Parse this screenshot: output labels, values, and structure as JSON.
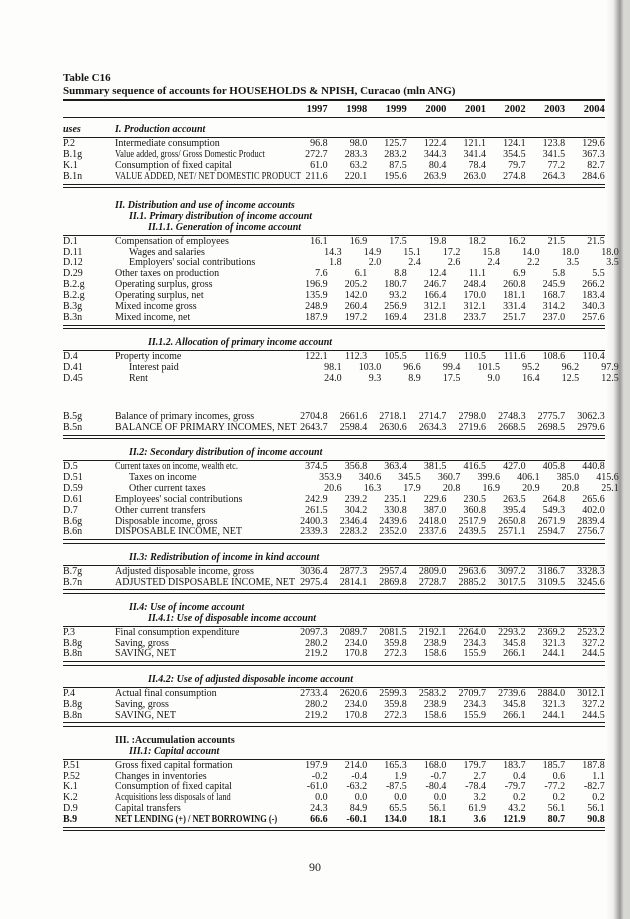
{
  "page": {
    "number": "90"
  },
  "table": {
    "label": "Table C16",
    "title": "Summary sequence of accounts for HOUSEHOLDS & NPISH, Curacao  (mln ANG)",
    "years": [
      "1997",
      "1998",
      "1999",
      "2000",
      "2001",
      "2002",
      "2003",
      "2004"
    ],
    "blocks": [
      {
        "headings": [
          {
            "code": "uses",
            "text": "I. Production account",
            "level": 1
          }
        ],
        "rows": [
          {
            "code": "P.2",
            "label": "Intermediate consumption",
            "values": [
              "96.8",
              "98.0",
              "125.7",
              "122.4",
              "121.1",
              "124.1",
              "123.8",
              "129.6"
            ]
          },
          {
            "code": "B.1g",
            "label": "Value added, gross/ Gross Domestic Product",
            "values": [
              "272.7",
              "283.3",
              "283.2",
              "344.3",
              "341.4",
              "354.5",
              "341.5",
              "367.3"
            ]
          },
          {
            "code": "K.1",
            "label": "Consumption of fixed capital",
            "values": [
              "61.0",
              "63.2",
              "87.5",
              "80.4",
              "78.4",
              "79.7",
              "77.2",
              "82.7"
            ]
          },
          {
            "code": "B.1n",
            "label": "VALUE ADDED, NET/ NET DOMESTIC PRODUCT",
            "values": [
              "211.6",
              "220.1",
              "195.6",
              "263.9",
              "263.0",
              "274.8",
              "264.3",
              "284.6"
            ]
          }
        ],
        "end_rule": "double"
      },
      {
        "gap": "large",
        "headings": [
          {
            "text": "II. Distribution and use of income accounts",
            "level": 1
          },
          {
            "text": "II.1. Primary distribution of income account",
            "level": 2
          },
          {
            "text": "II.1.1. Generation of income account",
            "level": 3
          }
        ],
        "rows": [
          {
            "code": "D.1",
            "label": "Compensation of employees",
            "values": [
              "16.1",
              "16.9",
              "17.5",
              "19.8",
              "18.2",
              "16.2",
              "21.5",
              "21.5"
            ]
          },
          {
            "code": "D.11",
            "label": "Wages and salaries",
            "indent": true,
            "values": [
              "14.3",
              "14.9",
              "15.1",
              "17.2",
              "15.8",
              "14.0",
              "18.0",
              "18.0"
            ]
          },
          {
            "code": "D.12",
            "label": "Employers' social contributions",
            "indent": true,
            "values": [
              "1.8",
              "2.0",
              "2.4",
              "2.6",
              "2.4",
              "2.2",
              "3.5",
              "3.5"
            ]
          },
          {
            "code": "D.29",
            "label": "Other taxes on production",
            "values": [
              "7.6",
              "6.1",
              "8.8",
              "12.4",
              "11.1",
              "6.9",
              "5.8",
              "5.5"
            ]
          },
          {
            "code": "B.2.g",
            "label": "Operating surplus, gross",
            "values": [
              "196.9",
              "205.2",
              "180.7",
              "246.7",
              "248.4",
              "260.8",
              "245.9",
              "266.2"
            ]
          },
          {
            "code": "B.2.g",
            "label": "Operating surplus, net",
            "values": [
              "135.9",
              "142.0",
              "93.2",
              "166.4",
              "170.0",
              "181.1",
              "168.7",
              "183.4"
            ]
          },
          {
            "code": "B.3g",
            "label": "Mixed income gross",
            "values": [
              "248.9",
              "260.4",
              "256.9",
              "312.1",
              "312.1",
              "331.4",
              "314.2",
              "340.3"
            ]
          },
          {
            "code": "B.3n",
            "label": "Mixed income, net",
            "values": [
              "187.9",
              "197.2",
              "169.4",
              "231.8",
              "233.7",
              "251.7",
              "237.0",
              "257.6"
            ]
          }
        ],
        "end_rule": "double"
      },
      {
        "headings": [
          {
            "text": "II.1.2. Allocation of primary income account",
            "level": 3
          }
        ],
        "rows": [
          {
            "code": "D.4",
            "label": "Property income",
            "values": [
              "122.1",
              "112.3",
              "105.5",
              "116.9",
              "110.5",
              "111.6",
              "108.6",
              "110.4"
            ]
          },
          {
            "code": "D.41",
            "label": "Interest paid",
            "indent": true,
            "values": [
              "98.1",
              "103.0",
              "96.6",
              "99.4",
              "101.5",
              "95.2",
              "96.2",
              "97.9"
            ]
          },
          {
            "code": "D.45",
            "label": "Rent",
            "indent": true,
            "values": [
              "24.0",
              "9.3",
              "8.9",
              "17.5",
              "9.0",
              "16.4",
              "12.5",
              "12.5"
            ]
          }
        ],
        "end_rule": "none"
      },
      {
        "spacer_before": true,
        "headings": [],
        "rows": [
          {
            "code": "B.5g",
            "label": "Balance of primary incomes, gross",
            "values": [
              "2704.8",
              "2661.6",
              "2718.1",
              "2714.7",
              "2798.0",
              "2748.3",
              "2775.7",
              "3062.3"
            ]
          },
          {
            "code": "B.5n",
            "label": "BALANCE OF PRIMARY INCOMES, NET",
            "values": [
              "2643.7",
              "2598.4",
              "2630.6",
              "2634.3",
              "2719.6",
              "2668.5",
              "2698.5",
              "2979.6"
            ]
          }
        ],
        "end_rule": "double"
      },
      {
        "headings": [
          {
            "text": "II.2: Secondary distribution of income account",
            "level": 2
          }
        ],
        "rows": [
          {
            "code": "D.5",
            "label": "Current taxes on income, wealth etc.",
            "values": [
              "374.5",
              "356.8",
              "363.4",
              "381.5",
              "416.5",
              "427.0",
              "405.8",
              "440.8"
            ]
          },
          {
            "code": "D.51",
            "label": "Taxes on income",
            "indent": true,
            "values": [
              "353.9",
              "340.6",
              "345.5",
              "360.7",
              "399.6",
              "406.1",
              "385.0",
              "415.6"
            ]
          },
          {
            "code": "D.59",
            "label": "Other current taxes",
            "indent": true,
            "values": [
              "20.6",
              "16.3",
              "17.9",
              "20.8",
              "16.9",
              "20.9",
              "20.8",
              "25.1"
            ]
          },
          {
            "code": "D.61",
            "label": "Employees' social contributions",
            "values": [
              "242.9",
              "239.2",
              "235.1",
              "229.6",
              "230.5",
              "263.5",
              "264.8",
              "265.6"
            ]
          },
          {
            "code": "D.7",
            "label": "Other current transfers",
            "values": [
              "261.5",
              "304.2",
              "330.8",
              "387.0",
              "360.8",
              "395.4",
              "549.3",
              "402.0"
            ]
          },
          {
            "code": "B.6g",
            "label": "Disposable income, gross",
            "values": [
              "2400.3",
              "2346.4",
              "2439.6",
              "2418.0",
              "2517.9",
              "2650.8",
              "2671.9",
              "2839.4"
            ]
          },
          {
            "code": "B.6n",
            "label": "DISPOSABLE INCOME, NET",
            "values": [
              "2339.3",
              "2283.2",
              "2352.0",
              "2337.6",
              "2439.5",
              "2571.1",
              "2594.7",
              "2756.7"
            ]
          }
        ],
        "end_rule": "double"
      },
      {
        "headings": [
          {
            "text": "II.3: Redistribution of income in kind account",
            "level": 2
          }
        ],
        "rows": [
          {
            "code": "B.7g",
            "label": "Adjusted disposable income, gross",
            "values": [
              "3036.4",
              "2877.3",
              "2957.4",
              "2809.0",
              "2963.6",
              "3097.2",
              "3186.7",
              "3328.3"
            ]
          },
          {
            "code": "B.7n",
            "label": "ADJUSTED DISPOSABLE INCOME, NET",
            "values": [
              "2975.4",
              "2814.1",
              "2869.8",
              "2728.7",
              "2885.2",
              "3017.5",
              "3109.5",
              "3245.6"
            ]
          }
        ],
        "end_rule": "double"
      },
      {
        "headings": [
          {
            "text": "II.4: Use of income account",
            "level": 2
          },
          {
            "text": "II.4.1: Use of disposable income account",
            "level": 3
          }
        ],
        "rows": [
          {
            "code": "P.3",
            "label": "Final consumption expenditure",
            "values": [
              "2097.3",
              "2089.7",
              "2081.5",
              "2192.1",
              "2264.0",
              "2293.2",
              "2369.2",
              "2523.2"
            ]
          },
          {
            "code": "B.8g",
            "label": "Saving, gross",
            "values": [
              "280.2",
              "234.0",
              "359.8",
              "238.9",
              "234.3",
              "345.8",
              "321.3",
              "327.2"
            ]
          },
          {
            "code": "B.8n",
            "label": "SAVING, NET",
            "values": [
              "219.2",
              "170.8",
              "272.3",
              "158.6",
              "155.9",
              "266.1",
              "244.1",
              "244.5"
            ]
          }
        ],
        "end_rule": "double"
      },
      {
        "headings": [
          {
            "text": "II.4.2: Use of adjusted disposable income account",
            "level": 3
          }
        ],
        "rows": [
          {
            "code": "P.4",
            "label": "Actual final consumption",
            "values": [
              "2733.4",
              "2620.6",
              "2599.3",
              "2583.2",
              "2709.7",
              "2739.6",
              "2884.0",
              "3012.1"
            ]
          },
          {
            "code": "B.8g",
            "label": "Saving, gross",
            "values": [
              "280.2",
              "234.0",
              "359.8",
              "238.9",
              "234.3",
              "345.8",
              "321.3",
              "327.2"
            ]
          },
          {
            "code": "B.8n",
            "label": "SAVING, NET",
            "values": [
              "219.2",
              "170.8",
              "272.3",
              "158.6",
              "155.9",
              "266.1",
              "244.1",
              "244.5"
            ]
          }
        ],
        "end_rule": "double"
      },
      {
        "headings": [
          {
            "text": "III. :Accumulation accounts",
            "level": 1,
            "roman": true
          },
          {
            "text": "III.1: Capital account",
            "level": 2
          }
        ],
        "rows": [
          {
            "code": "P.51",
            "label": "Gross fixed capital formation",
            "values": [
              "197.9",
              "214.0",
              "165.3",
              "168.0",
              "179.7",
              "183.7",
              "185.7",
              "187.8"
            ]
          },
          {
            "code": "P.52",
            "label": "Changes in inventories",
            "values": [
              "-0.2",
              "-0.4",
              "1.9",
              "-0.7",
              "2.7",
              "0.4",
              "0.6",
              "1.1"
            ]
          },
          {
            "code": "K.1",
            "label": "Consumption of fixed capital",
            "values": [
              "-61.0",
              "-63.2",
              "-87.5",
              "-80.4",
              "-78.4",
              "-79.7",
              "-77.2",
              "-82.7"
            ]
          },
          {
            "code": "K.2",
            "label": "Acquisitions less disposals of land",
            "values": [
              "0.0",
              "0.0",
              "0.0",
              "0.0",
              "3.2",
              "0.2",
              "0.2",
              "0.2"
            ]
          },
          {
            "code": "D.9",
            "label": "Capital transfers",
            "values": [
              "24.3",
              "84.9",
              "65.5",
              "56.1",
              "61.9",
              "43.2",
              "56.1",
              "56.1"
            ]
          },
          {
            "code": "B.9",
            "label": "NET LENDING (+) / NET BORROWING (-)",
            "bold": true,
            "values": [
              "66.6",
              "-60.1",
              "134.0",
              "18.1",
              "3.6",
              "121.9",
              "80.7",
              "90.8"
            ]
          }
        ],
        "end_rule": "double"
      }
    ]
  }
}
